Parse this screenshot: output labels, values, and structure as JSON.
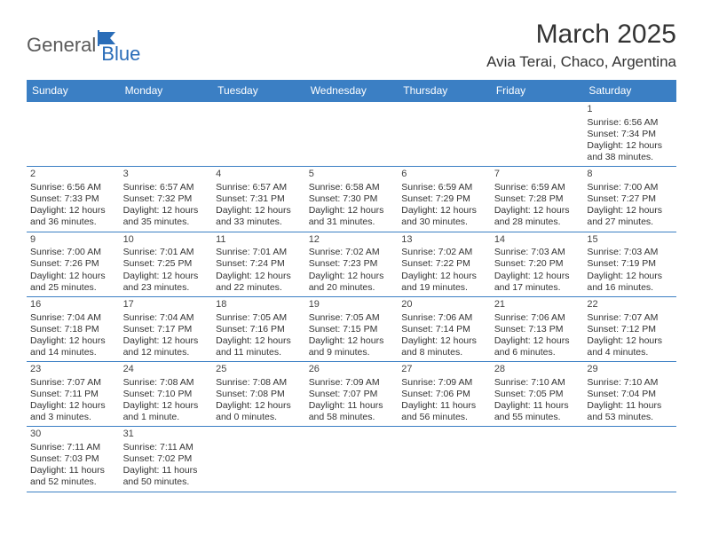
{
  "logo": {
    "part1": "General",
    "part2": "Blue"
  },
  "title": "March 2025",
  "location": "Avia Terai, Chaco, Argentina",
  "colors": {
    "header_bg": "#3b7fc4",
    "header_fg": "#ffffff",
    "border": "#3b7fc4",
    "text": "#333333",
    "logo_accent": "#2a6db8"
  },
  "weekdays": [
    "Sunday",
    "Monday",
    "Tuesday",
    "Wednesday",
    "Thursday",
    "Friday",
    "Saturday"
  ],
  "weeks": [
    [
      null,
      null,
      null,
      null,
      null,
      null,
      {
        "d": "1",
        "sr": "6:56 AM",
        "ss": "7:34 PM",
        "dl1": "12 hours",
        "dl2": "and 38 minutes."
      }
    ],
    [
      {
        "d": "2",
        "sr": "6:56 AM",
        "ss": "7:33 PM",
        "dl1": "12 hours",
        "dl2": "and 36 minutes."
      },
      {
        "d": "3",
        "sr": "6:57 AM",
        "ss": "7:32 PM",
        "dl1": "12 hours",
        "dl2": "and 35 minutes."
      },
      {
        "d": "4",
        "sr": "6:57 AM",
        "ss": "7:31 PM",
        "dl1": "12 hours",
        "dl2": "and 33 minutes."
      },
      {
        "d": "5",
        "sr": "6:58 AM",
        "ss": "7:30 PM",
        "dl1": "12 hours",
        "dl2": "and 31 minutes."
      },
      {
        "d": "6",
        "sr": "6:59 AM",
        "ss": "7:29 PM",
        "dl1": "12 hours",
        "dl2": "and 30 minutes."
      },
      {
        "d": "7",
        "sr": "6:59 AM",
        "ss": "7:28 PM",
        "dl1": "12 hours",
        "dl2": "and 28 minutes."
      },
      {
        "d": "8",
        "sr": "7:00 AM",
        "ss": "7:27 PM",
        "dl1": "12 hours",
        "dl2": "and 27 minutes."
      }
    ],
    [
      {
        "d": "9",
        "sr": "7:00 AM",
        "ss": "7:26 PM",
        "dl1": "12 hours",
        "dl2": "and 25 minutes."
      },
      {
        "d": "10",
        "sr": "7:01 AM",
        "ss": "7:25 PM",
        "dl1": "12 hours",
        "dl2": "and 23 minutes."
      },
      {
        "d": "11",
        "sr": "7:01 AM",
        "ss": "7:24 PM",
        "dl1": "12 hours",
        "dl2": "and 22 minutes."
      },
      {
        "d": "12",
        "sr": "7:02 AM",
        "ss": "7:23 PM",
        "dl1": "12 hours",
        "dl2": "and 20 minutes."
      },
      {
        "d": "13",
        "sr": "7:02 AM",
        "ss": "7:22 PM",
        "dl1": "12 hours",
        "dl2": "and 19 minutes."
      },
      {
        "d": "14",
        "sr": "7:03 AM",
        "ss": "7:20 PM",
        "dl1": "12 hours",
        "dl2": "and 17 minutes."
      },
      {
        "d": "15",
        "sr": "7:03 AM",
        "ss": "7:19 PM",
        "dl1": "12 hours",
        "dl2": "and 16 minutes."
      }
    ],
    [
      {
        "d": "16",
        "sr": "7:04 AM",
        "ss": "7:18 PM",
        "dl1": "12 hours",
        "dl2": "and 14 minutes."
      },
      {
        "d": "17",
        "sr": "7:04 AM",
        "ss": "7:17 PM",
        "dl1": "12 hours",
        "dl2": "and 12 minutes."
      },
      {
        "d": "18",
        "sr": "7:05 AM",
        "ss": "7:16 PM",
        "dl1": "12 hours",
        "dl2": "and 11 minutes."
      },
      {
        "d": "19",
        "sr": "7:05 AM",
        "ss": "7:15 PM",
        "dl1": "12 hours",
        "dl2": "and 9 minutes."
      },
      {
        "d": "20",
        "sr": "7:06 AM",
        "ss": "7:14 PM",
        "dl1": "12 hours",
        "dl2": "and 8 minutes."
      },
      {
        "d": "21",
        "sr": "7:06 AM",
        "ss": "7:13 PM",
        "dl1": "12 hours",
        "dl2": "and 6 minutes."
      },
      {
        "d": "22",
        "sr": "7:07 AM",
        "ss": "7:12 PM",
        "dl1": "12 hours",
        "dl2": "and 4 minutes."
      }
    ],
    [
      {
        "d": "23",
        "sr": "7:07 AM",
        "ss": "7:11 PM",
        "dl1": "12 hours",
        "dl2": "and 3 minutes."
      },
      {
        "d": "24",
        "sr": "7:08 AM",
        "ss": "7:10 PM",
        "dl1": "12 hours",
        "dl2": "and 1 minute."
      },
      {
        "d": "25",
        "sr": "7:08 AM",
        "ss": "7:08 PM",
        "dl1": "12 hours",
        "dl2": "and 0 minutes."
      },
      {
        "d": "26",
        "sr": "7:09 AM",
        "ss": "7:07 PM",
        "dl1": "11 hours",
        "dl2": "and 58 minutes."
      },
      {
        "d": "27",
        "sr": "7:09 AM",
        "ss": "7:06 PM",
        "dl1": "11 hours",
        "dl2": "and 56 minutes."
      },
      {
        "d": "28",
        "sr": "7:10 AM",
        "ss": "7:05 PM",
        "dl1": "11 hours",
        "dl2": "and 55 minutes."
      },
      {
        "d": "29",
        "sr": "7:10 AM",
        "ss": "7:04 PM",
        "dl1": "11 hours",
        "dl2": "and 53 minutes."
      }
    ],
    [
      {
        "d": "30",
        "sr": "7:11 AM",
        "ss": "7:03 PM",
        "dl1": "11 hours",
        "dl2": "and 52 minutes."
      },
      {
        "d": "31",
        "sr": "7:11 AM",
        "ss": "7:02 PM",
        "dl1": "11 hours",
        "dl2": "and 50 minutes."
      },
      null,
      null,
      null,
      null,
      null
    ]
  ],
  "labels": {
    "sunrise": "Sunrise:",
    "sunset": "Sunset:",
    "daylight": "Daylight:"
  }
}
